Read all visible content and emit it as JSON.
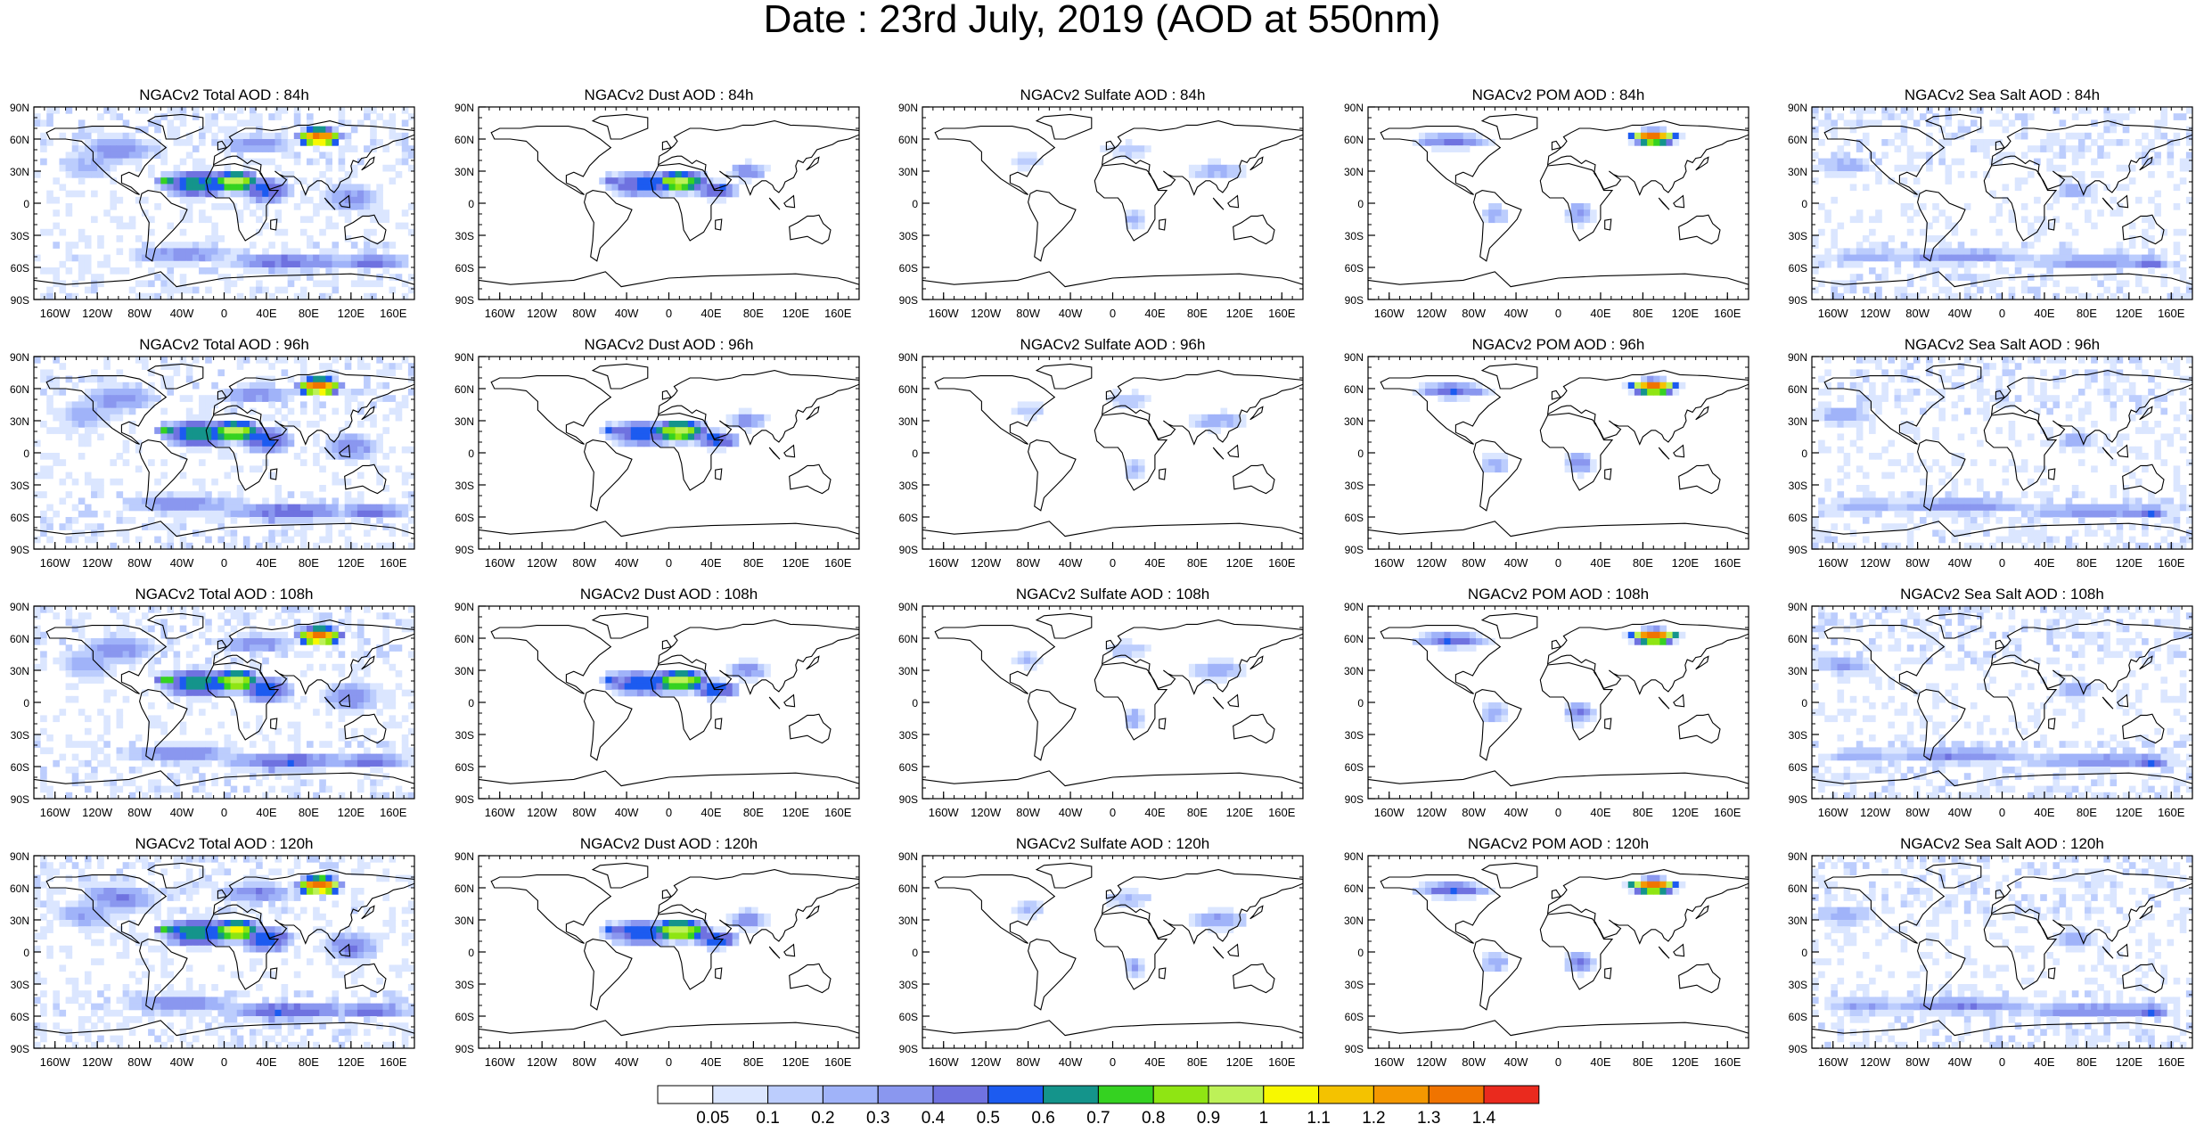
{
  "title": "Date : 23rd July, 2019 (AOD at 550nm)",
  "colors": {
    "levels": [
      "#ffffff",
      "#dbe6ff",
      "#bccdfd",
      "#a0b3f9",
      "#8a97ef",
      "#6f72e0",
      "#1c5bf0",
      "#14948b",
      "#35d221",
      "#8fe513",
      "#bdf158",
      "#f8f800",
      "#f4c200",
      "#f49800",
      "#f07400",
      "#ea2a1e"
    ],
    "coast": "#000000",
    "border": "#555555"
  },
  "colorbar": {
    "ticks": [
      "0.05",
      "0.1",
      "0.2",
      "0.3",
      "0.4",
      "0.5",
      "0.6",
      "0.7",
      "0.8",
      "0.9",
      "1",
      "1.1",
      "1.2",
      "1.3",
      "1.4"
    ]
  },
  "axes": {
    "lat_labels": [
      "90N",
      "60N",
      "30N",
      "0",
      "30S",
      "60S",
      "90S"
    ],
    "lon_labels": [
      "160W",
      "120W",
      "80W",
      "40W",
      "0",
      "40E",
      "80E",
      "120E",
      "160E"
    ]
  },
  "panels": [
    {
      "title": "NGACv2 Total AOD : 84h",
      "species": "total",
      "hour": 84
    },
    {
      "title": "NGACv2 Dust AOD : 84h",
      "species": "dust",
      "hour": 84
    },
    {
      "title": "NGACv2 Sulfate AOD : 84h",
      "species": "sulfate",
      "hour": 84
    },
    {
      "title": "NGACv2 POM AOD : 84h",
      "species": "pom",
      "hour": 84
    },
    {
      "title": "NGACv2 Sea Salt AOD : 84h",
      "species": "seasalt",
      "hour": 84
    },
    {
      "title": "NGACv2 Total AOD : 96h",
      "species": "total",
      "hour": 96
    },
    {
      "title": "NGACv2 Dust AOD : 96h",
      "species": "dust",
      "hour": 96
    },
    {
      "title": "NGACv2 Sulfate AOD : 96h",
      "species": "sulfate",
      "hour": 96
    },
    {
      "title": "NGACv2 POM AOD : 96h",
      "species": "pom",
      "hour": 96
    },
    {
      "title": "NGACv2 Sea Salt AOD : 96h",
      "species": "seasalt",
      "hour": 96
    },
    {
      "title": "NGACv2 Total AOD : 108h",
      "species": "total",
      "hour": 108
    },
    {
      "title": "NGACv2 Dust AOD : 108h",
      "species": "dust",
      "hour": 108
    },
    {
      "title": "NGACv2 Sulfate AOD : 108h",
      "species": "sulfate",
      "hour": 108
    },
    {
      "title": "NGACv2 POM AOD : 108h",
      "species": "pom",
      "hour": 108
    },
    {
      "title": "NGACv2 Sea Salt AOD : 108h",
      "species": "seasalt",
      "hour": 108
    },
    {
      "title": "NGACv2 Total AOD : 120h",
      "species": "total",
      "hour": 120
    },
    {
      "title": "NGACv2 Dust AOD : 120h",
      "species": "dust",
      "hour": 120
    },
    {
      "title": "NGACv2 Sulfate AOD : 120h",
      "species": "sulfate",
      "hour": 120
    },
    {
      "title": "NGACv2 POM AOD : 120h",
      "species": "pom",
      "hour": 120
    },
    {
      "title": "NGACv2 Sea Salt  AOD : 120h",
      "species": "seasalt",
      "hour": 120
    }
  ]
}
